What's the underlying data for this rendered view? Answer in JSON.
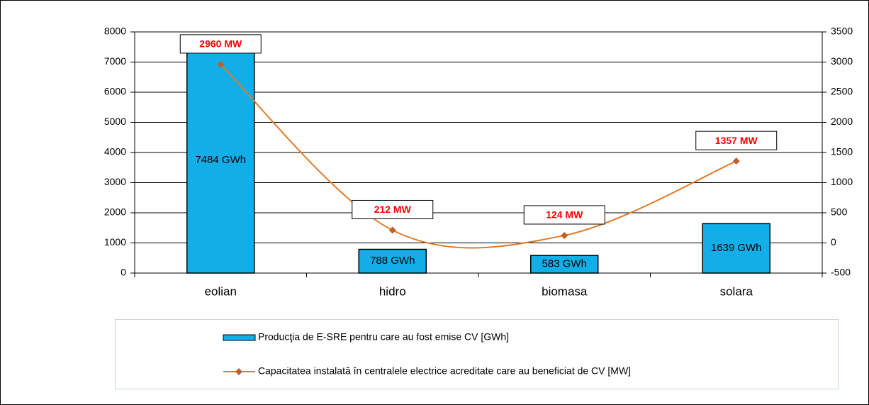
{
  "chart_data": {
    "type": "bar",
    "categories": [
      "eolian",
      "hidro",
      "biomasa",
      "solara"
    ],
    "series": [
      {
        "name": "Producţia de E-SRE pentru care au fost emise CV [GWh]",
        "type": "bar",
        "color": "#12aee8",
        "values": [
          7484,
          788,
          583,
          1639
        ],
        "value_labels": [
          "7484 GWh",
          "788 GWh",
          "583 GWh",
          "1639 GWh"
        ]
      },
      {
        "name": "Capacitatea instalată în centralele electrice acreditate care au beneficiat de CV [MW]",
        "type": "line",
        "axis": "y2",
        "color": "#e07b28",
        "values": [
          2960,
          212,
          124,
          1357
        ],
        "value_labels": [
          "2960 MW",
          "212 MW",
          "124 MW",
          "1357 MW"
        ]
      }
    ],
    "ylim": [
      0,
      8000
    ],
    "yticks": [
      0,
      1000,
      2000,
      3000,
      4000,
      5000,
      6000,
      7000,
      8000
    ],
    "y2lim": [
      -500,
      3500
    ],
    "y2ticks": [
      -500,
      0,
      500,
      1000,
      1500,
      2000,
      2500,
      3000,
      3500
    ],
    "grid": true,
    "legend": "bottom"
  }
}
